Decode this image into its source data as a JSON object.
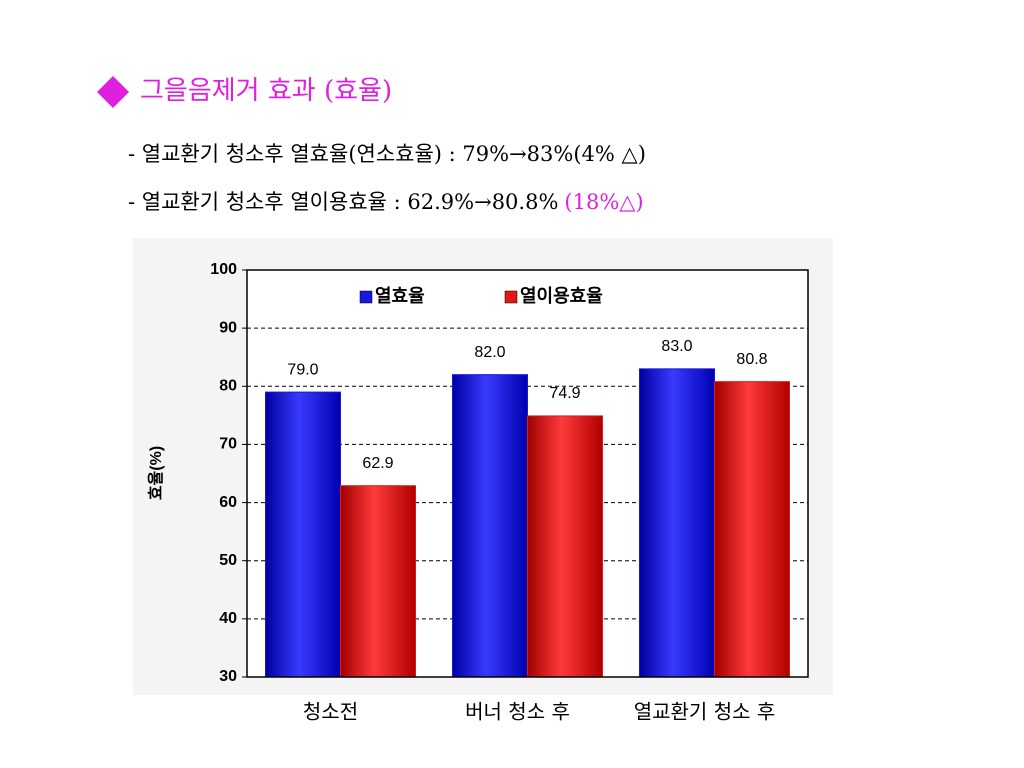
{
  "header": {
    "title": "그을음제거 효과 (효율)",
    "lines": [
      {
        "text": "- 열교환기 청소후 열효율(연소효율) : 79%→83%(4% △)"
      },
      {
        "text": "- 열교환기 청소후 열이용효율 : 62.9%→80.8%",
        "highlight": "(18%△)"
      }
    ]
  },
  "chart_data": {
    "type": "bar",
    "y_label": "효율(%)",
    "categories": [
      "청소전",
      "버너 청소 후",
      "열교환기 청소 후"
    ],
    "series": [
      {
        "name": "열효율",
        "color": "#1818e0",
        "values": [
          79,
          82,
          83
        ],
        "value_labels": [
          "79.0",
          "82.0",
          "83.0"
        ]
      },
      {
        "name": "열이용효율",
        "color": "#e01818",
        "values": [
          62.9,
          74.9,
          80.8
        ]
      }
    ],
    "ylim": [
      30,
      100
    ],
    "yticks": [
      30,
      40,
      50,
      60,
      70,
      80,
      90,
      100
    ],
    "grid": true,
    "legend": "top"
  }
}
